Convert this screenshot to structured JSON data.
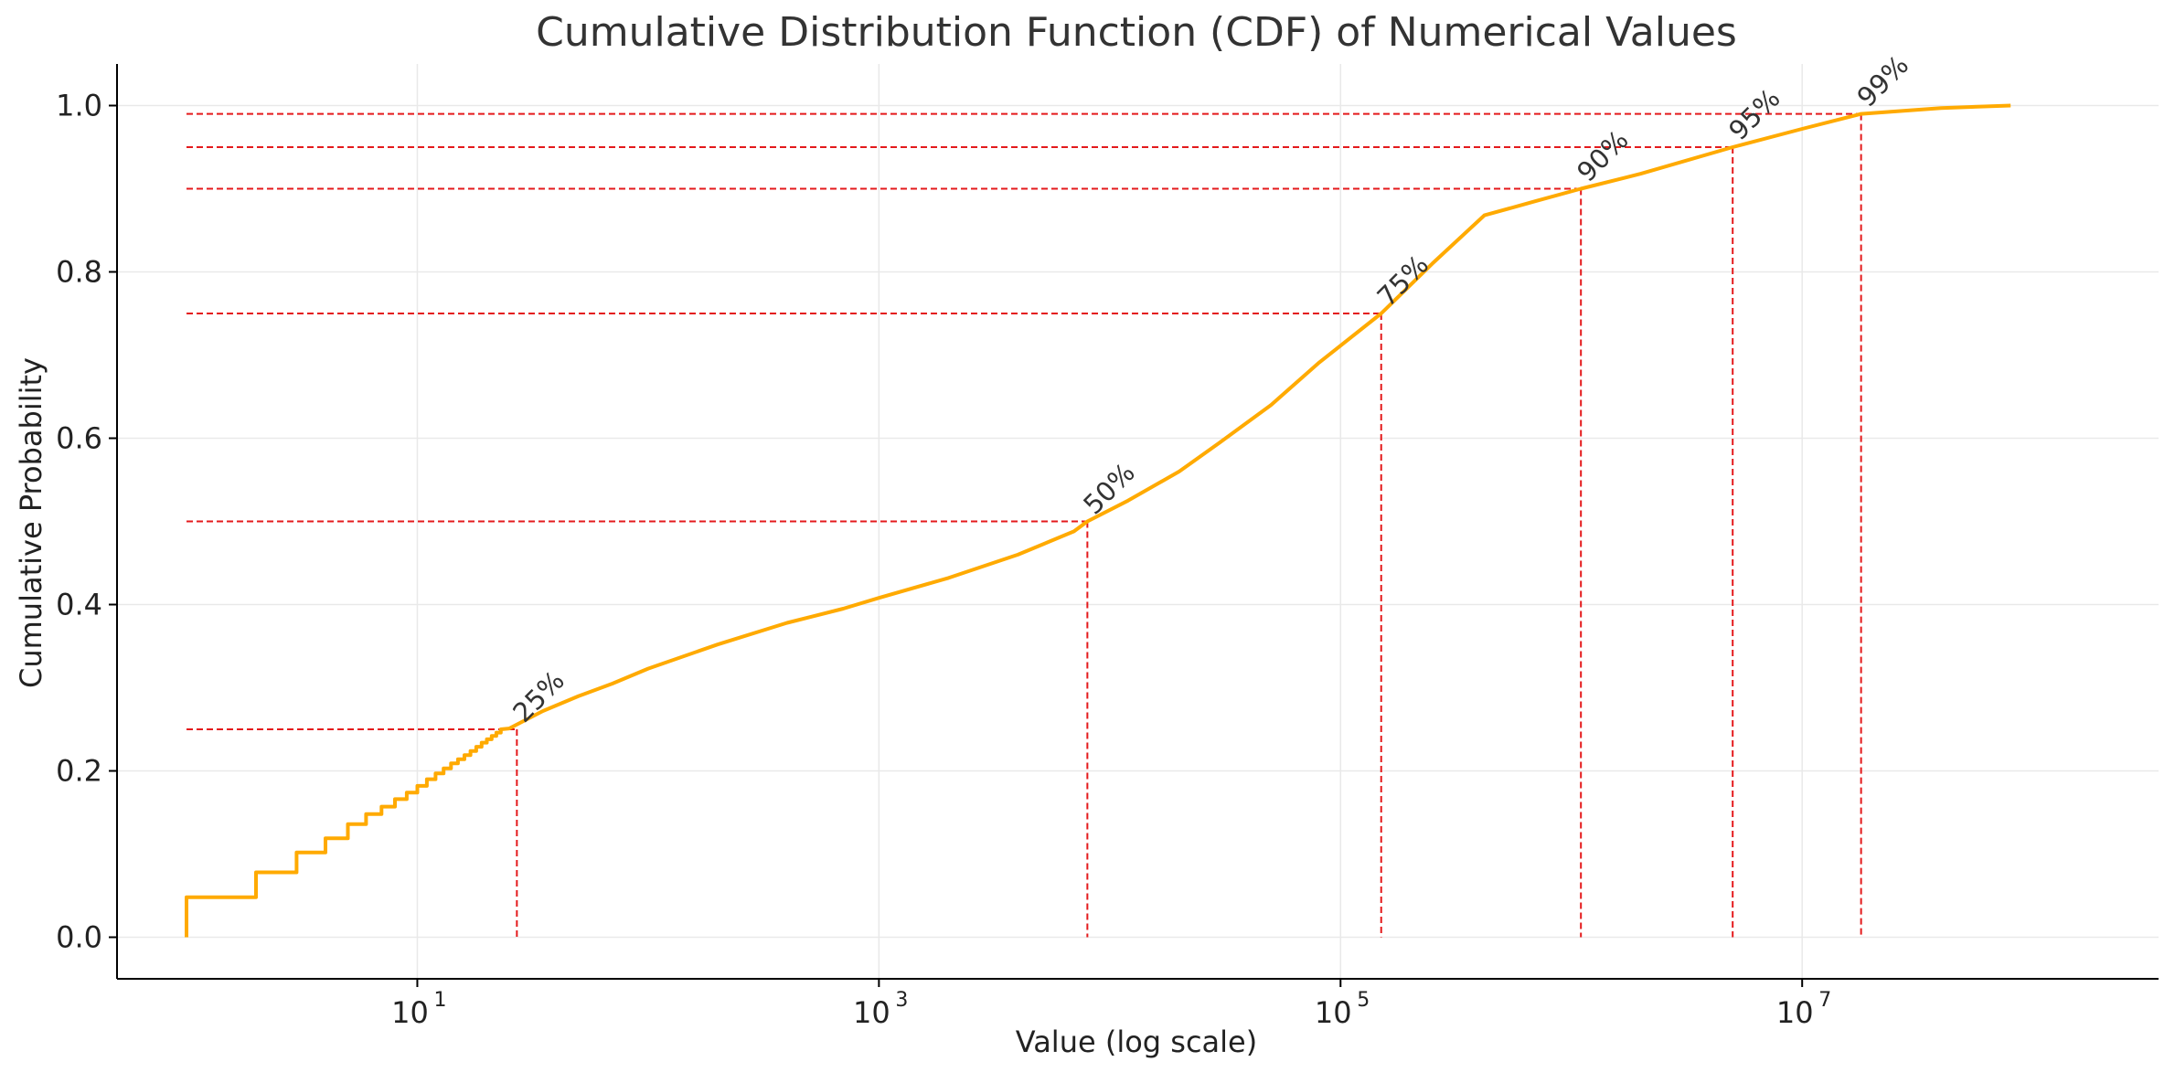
{
  "chart_data": {
    "type": "line",
    "title": "Cumulative Distribution Function (CDF) of Numerical Values",
    "xlabel": "Value (log scale)",
    "ylabel": "Cumulative Probability",
    "x_scale": "log",
    "xlim": [
      0.5,
      350000000.0
    ],
    "ylim": [
      -0.05,
      1.05
    ],
    "x_ticks": [
      {
        "value": 10,
        "label": "10",
        "exp": "1"
      },
      {
        "value": 1000,
        "label": "10",
        "exp": "3"
      },
      {
        "value": 100000,
        "label": "10",
        "exp": "5"
      },
      {
        "value": 10000000,
        "label": "10",
        "exp": "7"
      }
    ],
    "y_ticks": [
      {
        "value": 0.0,
        "label": "0.0"
      },
      {
        "value": 0.2,
        "label": "0.2"
      },
      {
        "value": 0.4,
        "label": "0.4"
      },
      {
        "value": 0.6,
        "label": "0.6"
      },
      {
        "value": 0.8,
        "label": "0.8"
      },
      {
        "value": 1.0,
        "label": "1.0"
      }
    ],
    "grid": true,
    "colors": {
      "curve": "#ffaa00",
      "percentile_lines": "#e41a1c",
      "text": "#333333",
      "grid": "#e9e9e9",
      "axis": "#000000"
    },
    "series": [
      {
        "steps": [
          [
            1,
            0.0
          ],
          [
            1,
            0.048
          ],
          [
            2,
            0.048
          ],
          [
            2,
            0.078
          ],
          [
            3,
            0.078
          ],
          [
            3,
            0.102
          ],
          [
            4,
            0.102
          ],
          [
            4,
            0.119
          ],
          [
            5,
            0.119
          ],
          [
            5,
            0.136
          ],
          [
            6,
            0.136
          ],
          [
            6,
            0.148
          ],
          [
            7,
            0.148
          ],
          [
            7,
            0.157
          ],
          [
            8,
            0.157
          ],
          [
            8,
            0.166
          ],
          [
            9,
            0.166
          ],
          [
            9,
            0.174
          ],
          [
            10,
            0.174
          ],
          [
            10,
            0.182
          ],
          [
            11,
            0.182
          ],
          [
            11,
            0.19
          ],
          [
            12,
            0.19
          ],
          [
            12,
            0.197
          ],
          [
            13,
            0.197
          ],
          [
            13,
            0.203
          ],
          [
            14,
            0.203
          ],
          [
            14,
            0.209
          ],
          [
            15,
            0.209
          ],
          [
            15,
            0.214
          ],
          [
            16,
            0.214
          ],
          [
            16,
            0.219
          ],
          [
            17,
            0.219
          ],
          [
            17,
            0.224
          ],
          [
            18,
            0.224
          ],
          [
            18,
            0.229
          ],
          [
            19,
            0.229
          ],
          [
            19,
            0.234
          ],
          [
            20,
            0.234
          ],
          [
            20,
            0.238
          ],
          [
            21,
            0.238
          ],
          [
            21,
            0.242
          ],
          [
            22,
            0.242
          ],
          [
            22,
            0.246
          ],
          [
            23,
            0.246
          ],
          [
            23,
            0.25
          ]
        ],
        "curve": [
          [
            25,
            0.251
          ],
          [
            35,
            0.272
          ],
          [
            50,
            0.29
          ],
          [
            70,
            0.305
          ],
          [
            100,
            0.323
          ],
          [
            200,
            0.352
          ],
          [
            400,
            0.378
          ],
          [
            700,
            0.395
          ],
          [
            1000,
            0.408
          ],
          [
            2000,
            0.432
          ],
          [
            4000,
            0.46
          ],
          [
            7000,
            0.488
          ],
          [
            8000,
            0.5
          ],
          [
            12000,
            0.525
          ],
          [
            20000,
            0.56
          ],
          [
            30000,
            0.595
          ],
          [
            50000,
            0.64
          ],
          [
            80000,
            0.69
          ],
          [
            150000,
            0.75
          ],
          [
            250000,
            0.81
          ],
          [
            420000,
            0.868
          ],
          [
            700000,
            0.885
          ],
          [
            1100000,
            0.9
          ],
          [
            2000000,
            0.918
          ],
          [
            5000000,
            0.95
          ],
          [
            10000000,
            0.972
          ],
          [
            18000000,
            0.99
          ],
          [
            40000000,
            0.997
          ],
          [
            80000000,
            1.0
          ]
        ]
      }
    ],
    "percentiles": [
      {
        "label": "25%",
        "x": 27,
        "y": 0.25
      },
      {
        "label": "50%",
        "x": 8000,
        "y": 0.5
      },
      {
        "label": "75%",
        "x": 150000,
        "y": 0.75
      },
      {
        "label": "90%",
        "x": 1100000,
        "y": 0.9
      },
      {
        "label": "95%",
        "x": 5000000,
        "y": 0.95
      },
      {
        "label": "99%",
        "x": 18000000,
        "y": 0.99
      }
    ],
    "percentile_line_start_x": 1
  }
}
